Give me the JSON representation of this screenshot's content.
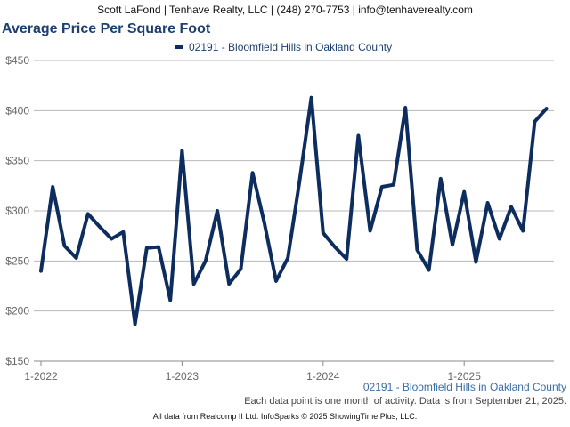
{
  "header": {
    "contact": "Scott LaFond | Tenhave Realty, LLC | (248) 270-7753 | info@tenhaverealty.com"
  },
  "footer": {
    "series_label": "02191 - Bloomfield Hills in Oakland County",
    "note": "Each data point is one month of activity. Data is from September 21, 2025.",
    "credit": "All data from Realcomp II Ltd. InfoSparks © 2025 ShowingTime Plus, LLC."
  },
  "colors": {
    "line": "#0d2d5e",
    "title": "#1d3f6e",
    "grid": "#b8b8b8"
  },
  "chart_data": {
    "type": "line",
    "title": "Average Price Per Square Foot",
    "legend_position": "top-center",
    "grid": true,
    "ylim": [
      150,
      450
    ],
    "yticks": [
      150,
      200,
      250,
      300,
      350,
      400,
      450
    ],
    "ytick_labels": [
      "$150",
      "$200",
      "$250",
      "$300",
      "$350",
      "$400",
      "$450"
    ],
    "xtick_labels": [
      "1-2022",
      "1-2023",
      "1-2024",
      "1-2025"
    ],
    "series": [
      {
        "name": "02191 - Bloomfield Hills in Oakland County",
        "x": [
          "2022-01",
          "2022-02",
          "2022-03",
          "2022-04",
          "2022-05",
          "2022-06",
          "2022-07",
          "2022-08",
          "2022-09",
          "2022-10",
          "2022-11",
          "2022-12",
          "2023-01",
          "2023-02",
          "2023-03",
          "2023-04",
          "2023-05",
          "2023-06",
          "2023-07",
          "2023-08",
          "2023-09",
          "2023-10",
          "2023-11",
          "2023-12",
          "2024-01",
          "2024-02",
          "2024-03",
          "2024-04",
          "2024-05",
          "2024-06",
          "2024-07",
          "2024-08",
          "2024-09",
          "2024-10",
          "2024-11",
          "2024-12",
          "2025-01",
          "2025-02",
          "2025-03",
          "2025-04",
          "2025-05",
          "2025-06",
          "2025-07",
          "2025-08"
        ],
        "values": [
          240,
          324,
          265,
          253,
          297,
          284,
          272,
          279,
          187,
          263,
          264,
          211,
          360,
          227,
          250,
          300,
          227,
          242,
          338,
          288,
          230,
          253,
          330,
          413,
          278,
          264,
          252,
          375,
          280,
          324,
          326,
          403,
          261,
          241,
          332,
          266,
          319,
          249,
          308,
          272,
          304,
          280,
          389,
          402
        ]
      }
    ]
  }
}
